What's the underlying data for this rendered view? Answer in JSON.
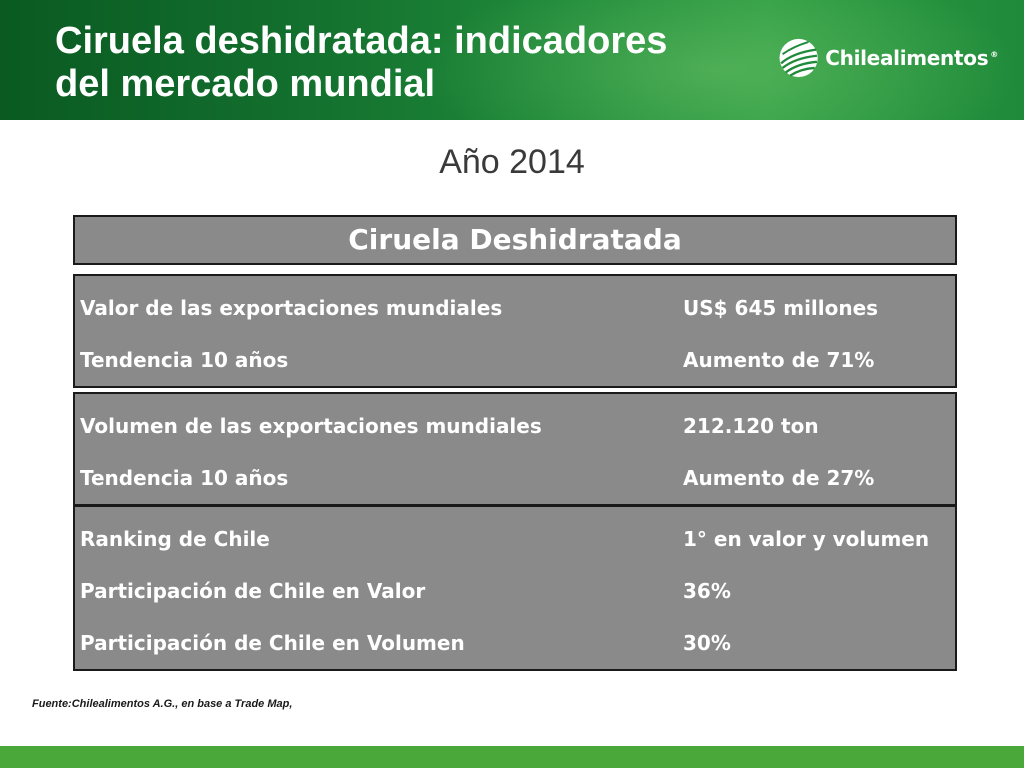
{
  "header": {
    "title_line1": "Ciruela deshidratada: indicadores",
    "title_line2": "del mercado mundial",
    "logo_text": "Chilealimentos",
    "logo_mark": "®"
  },
  "subtitle": "Año 2014",
  "table": {
    "heading": "Ciruela Deshidratada",
    "groups": [
      {
        "rows": [
          {
            "label": "Valor de las exportaciones mundiales",
            "value": "US$ 645 millones"
          },
          {
            "label": "Tendencia 10 años",
            "value": "Aumento de 71%"
          }
        ]
      },
      {
        "rows": [
          {
            "label": "Volumen de las exportaciones mundiales",
            "value": "212.120 ton"
          },
          {
            "label": "Tendencia 10 años",
            "value": "Aumento de 27%"
          }
        ]
      },
      {
        "rows": [
          {
            "label": "Ranking de Chile",
            "value": "1° en valor y volumen"
          },
          {
            "label": "Participación de Chile en Valor",
            "value": "36%"
          },
          {
            "label": "Participación de Chile en Volumen",
            "value": "30%"
          }
        ]
      }
    ]
  },
  "source": "Fuente:Chilealimentos A.G., en base a Trade Map,",
  "colors": {
    "header_green": "#13702e",
    "box_gray": "#8a8a8a",
    "footer_green": "#4aa83a"
  }
}
